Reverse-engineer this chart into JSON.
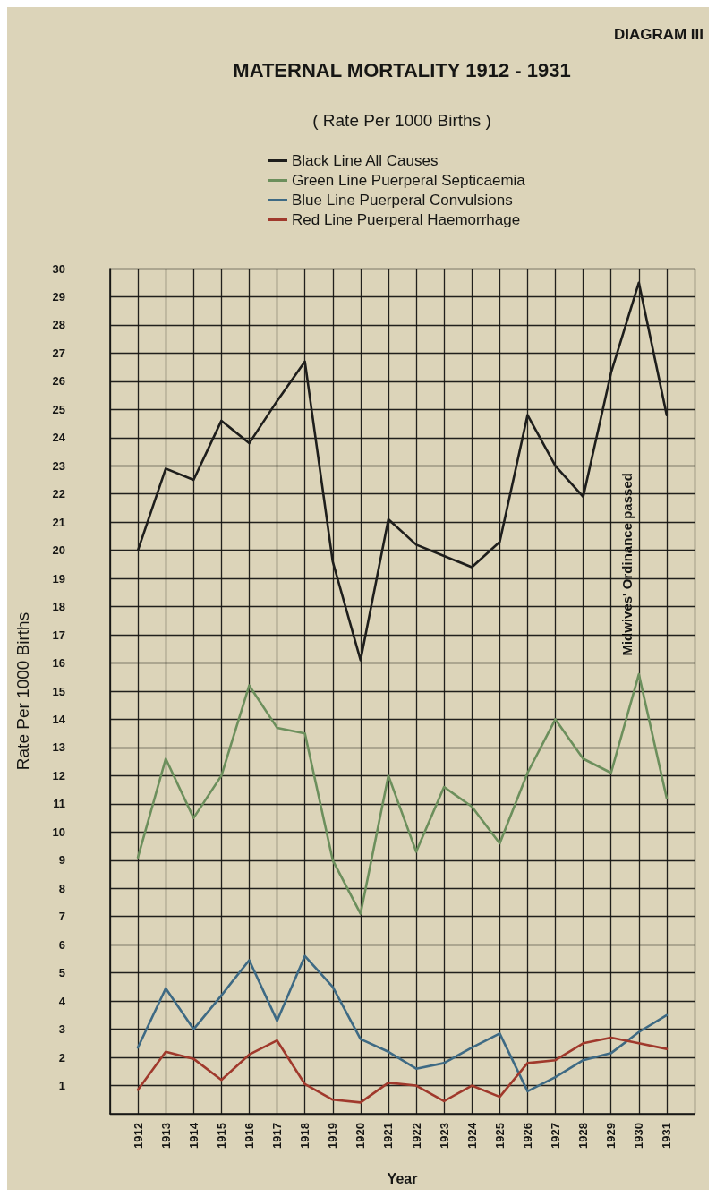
{
  "chart_data": {
    "type": "line",
    "title": "MATERNAL MORTALITY 1912 - 1931",
    "subtitle": "( Rate Per 1000 Births )",
    "xlabel": "Year",
    "ylabel": "Rate Per 1000 Births",
    "annotations": [
      "DIAGRAM III",
      "Midwives' Ordinance passed"
    ],
    "x": [
      1912,
      1913,
      1914,
      1915,
      1916,
      1917,
      1918,
      1919,
      1920,
      1921,
      1922,
      1923,
      1924,
      1925,
      1926,
      1927,
      1928,
      1929,
      1930,
      1931
    ],
    "series": [
      {
        "name": "Black Line All Causes",
        "color": "#1e1e1c",
        "values": [
          20.0,
          22.9,
          22.5,
          24.6,
          23.8,
          25.3,
          26.7,
          19.6,
          16.1,
          21.1,
          20.2,
          19.8,
          19.4,
          20.3,
          24.8,
          23.0,
          21.9,
          26.3,
          29.5,
          24.8
        ]
      },
      {
        "name": "Green Line Puerperal Septicaemia",
        "color": "#6c8f5c",
        "values": [
          9.1,
          12.6,
          10.5,
          12.0,
          15.2,
          13.7,
          13.5,
          9.0,
          7.1,
          12.0,
          9.3,
          11.6,
          10.9,
          9.6,
          12.1,
          14.0,
          12.6,
          12.1,
          15.6,
          11.2
        ]
      },
      {
        "name": "Blue Line Puerperal Convulsions",
        "color": "#3e6a84",
        "values": [
          2.35,
          4.45,
          3.0,
          4.2,
          5.45,
          3.3,
          5.6,
          4.5,
          2.65,
          2.2,
          1.6,
          1.8,
          2.35,
          2.85,
          0.8,
          1.3,
          1.9,
          2.15,
          2.9,
          3.5
        ]
      },
      {
        "name": "Red Line Puerperal Haemorrhage",
        "color": "#a0392c",
        "values": [
          0.85,
          2.2,
          1.95,
          1.2,
          2.1,
          2.6,
          1.05,
          0.5,
          0.4,
          1.1,
          1.0,
          0.45,
          1.0,
          0.6,
          1.8,
          1.9,
          2.5,
          2.7,
          2.5,
          2.3
        ]
      }
    ],
    "xlim": [
      1911,
      1932
    ],
    "xticks": [
      1912,
      1913,
      1914,
      1915,
      1916,
      1917,
      1918,
      1919,
      1920,
      1921,
      1922,
      1923,
      1924,
      1925,
      1926,
      1927,
      1928,
      1929,
      1930,
      1931
    ],
    "ylim": [
      0,
      30
    ],
    "yticks": [
      1,
      2,
      3,
      4,
      5,
      6,
      7,
      8,
      9,
      10,
      11,
      12,
      13,
      14,
      15,
      16,
      17,
      18,
      19,
      20,
      21,
      22,
      23,
      24,
      25,
      26,
      27,
      28,
      29,
      30
    ],
    "grid": true,
    "legend": "top",
    "marker": "none",
    "line_style": "solid"
  }
}
